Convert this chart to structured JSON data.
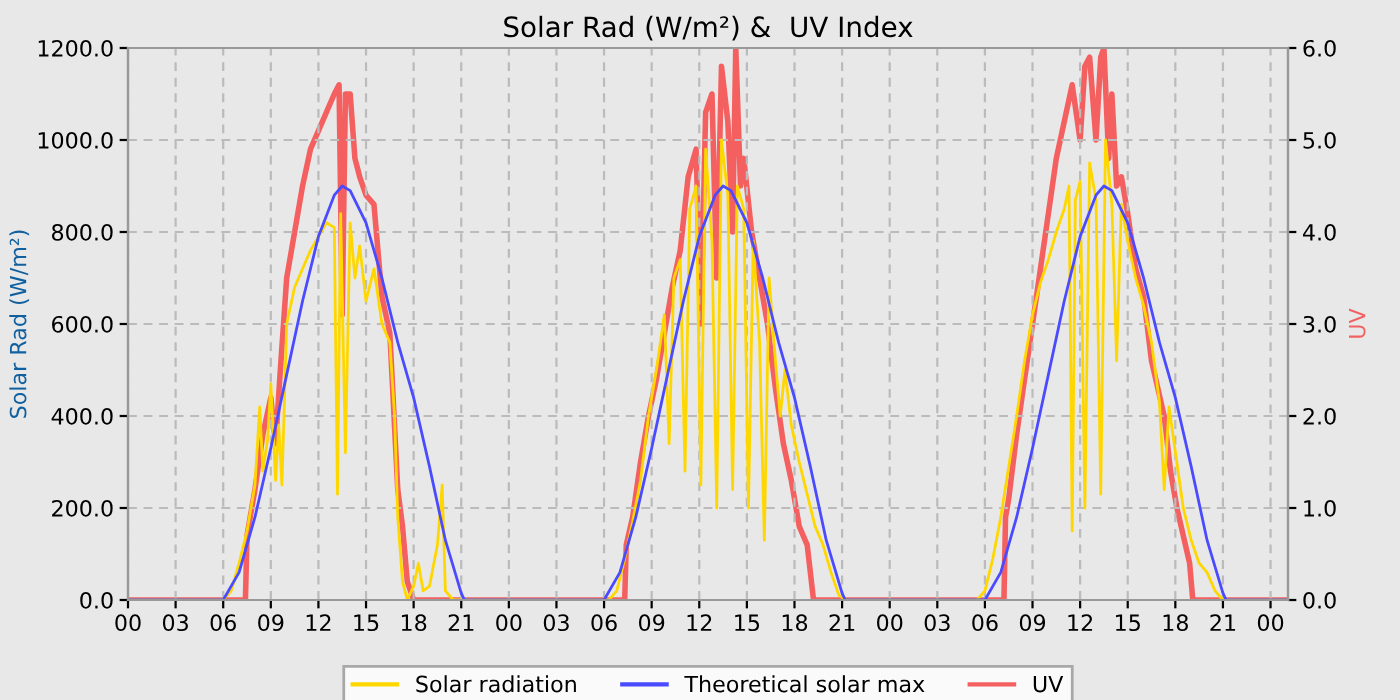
{
  "chart_data": {
    "type": "line",
    "title": "Solar Rad (W/m²) &  UV Index",
    "ylabel": "Solar Rad (W/m²)",
    "y2label": "UV",
    "xlim": [
      0,
      73.1
    ],
    "ylim": [
      0,
      1200
    ],
    "y2lim": [
      0,
      6
    ],
    "xticks": [
      {
        "value": 0,
        "label": "00"
      },
      {
        "value": 3,
        "label": "03"
      },
      {
        "value": 6,
        "label": "06"
      },
      {
        "value": 9,
        "label": "09"
      },
      {
        "value": 12,
        "label": "12"
      },
      {
        "value": 15,
        "label": "15"
      },
      {
        "value": 18,
        "label": "18"
      },
      {
        "value": 21,
        "label": "21"
      },
      {
        "value": 24,
        "label": "00"
      },
      {
        "value": 27,
        "label": "03"
      },
      {
        "value": 30,
        "label": "06"
      },
      {
        "value": 33,
        "label": "09"
      },
      {
        "value": 36,
        "label": "12"
      },
      {
        "value": 39,
        "label": "15"
      },
      {
        "value": 42,
        "label": "18"
      },
      {
        "value": 45,
        "label": "21"
      },
      {
        "value": 48,
        "label": "00"
      },
      {
        "value": 51,
        "label": "03"
      },
      {
        "value": 54,
        "label": "06"
      },
      {
        "value": 57,
        "label": "09"
      },
      {
        "value": 60,
        "label": "12"
      },
      {
        "value": 63,
        "label": "15"
      },
      {
        "value": 66,
        "label": "18"
      },
      {
        "value": 69,
        "label": "21"
      },
      {
        "value": 72,
        "label": "00"
      }
    ],
    "yticks": [
      {
        "value": 0,
        "label": "0.0"
      },
      {
        "value": 200,
        "label": "200.0"
      },
      {
        "value": 400,
        "label": "400.0"
      },
      {
        "value": 600,
        "label": "600.0"
      },
      {
        "value": 800,
        "label": "800.0"
      },
      {
        "value": 1000,
        "label": "1000.0"
      },
      {
        "value": 1200,
        "label": "1200.0"
      }
    ],
    "y2ticks": [
      {
        "value": 0,
        "label": "0.0"
      },
      {
        "value": 1,
        "label": "1.0"
      },
      {
        "value": 2,
        "label": "2.0"
      },
      {
        "value": 3,
        "label": "3.0"
      },
      {
        "value": 4,
        "label": "4.0"
      },
      {
        "value": 5,
        "label": "5.0"
      },
      {
        "value": 6,
        "label": "6.0"
      }
    ],
    "grid": true,
    "legend": "bottom",
    "series": [
      {
        "name": "Solar radiation",
        "color": "#ffd700",
        "x": [
          0,
          6,
          6.5,
          7,
          7.5,
          8,
          8.3,
          8.5,
          8.8,
          9,
          9.3,
          9.5,
          9.7,
          10,
          10.5,
          11,
          11.5,
          12,
          12.5,
          13,
          13.2,
          13.4,
          13.7,
          14,
          14.3,
          14.6,
          15,
          15.5,
          16,
          16.5,
          16.8,
          17,
          17.3,
          17.6,
          18,
          18.3,
          18.6,
          19,
          19.5,
          19.8,
          20,
          20.5,
          30.3,
          30.8,
          31.3,
          31.8,
          32.3,
          32.8,
          33.3,
          33.8,
          34.1,
          34.4,
          34.8,
          35.1,
          35.4,
          35.8,
          36.1,
          36.4,
          36.8,
          37.1,
          37.4,
          37.8,
          38.1,
          38.4,
          38.8,
          39.1,
          39.4,
          39.8,
          40.1,
          40.4,
          40.8,
          41.1,
          41.4,
          41.8,
          42.3,
          42.8,
          43.3,
          43.8,
          44.3,
          44.8,
          45.3,
          53.5,
          54,
          54.5,
          55,
          55.5,
          56,
          56.5,
          57,
          57.5,
          58,
          58.5,
          59,
          59.3,
          59.5,
          59.7,
          60,
          60.3,
          60.6,
          61,
          61.3,
          61.6,
          62,
          62.3,
          62.6,
          63,
          63.5,
          64,
          64.5,
          65,
          65.3,
          65.6,
          66.5,
          67,
          67.5,
          68,
          68.5,
          69,
          73.1
        ],
        "values": [
          0,
          0,
          20,
          80,
          150,
          250,
          420,
          280,
          350,
          470,
          260,
          380,
          250,
          600,
          680,
          720,
          760,
          790,
          820,
          810,
          230,
          840,
          320,
          820,
          700,
          770,
          650,
          720,
          600,
          560,
          400,
          180,
          40,
          0,
          30,
          80,
          20,
          30,
          120,
          250,
          20,
          0,
          0,
          20,
          90,
          170,
          260,
          400,
          500,
          620,
          340,
          700,
          740,
          280,
          850,
          900,
          250,
          980,
          780,
          200,
          1000,
          880,
          240,
          900,
          850,
          200,
          780,
          560,
          130,
          700,
          520,
          400,
          500,
          380,
          300,
          230,
          160,
          120,
          60,
          10,
          0,
          0,
          20,
          90,
          180,
          290,
          400,
          520,
          620,
          690,
          740,
          800,
          850,
          900,
          150,
          870,
          910,
          200,
          950,
          870,
          230,
          1000,
          860,
          520,
          860,
          780,
          700,
          640,
          560,
          430,
          240,
          420,
          200,
          130,
          80,
          60,
          20,
          0,
          0
        ]
      },
      {
        "name": "Theoretical solar max",
        "color": "#4a4aff",
        "x": [
          0,
          6,
          7,
          8,
          9,
          10,
          11,
          12,
          13,
          13.5,
          14,
          15,
          16,
          17,
          18,
          19,
          20,
          21,
          21.2,
          30,
          31,
          32,
          33,
          34,
          35,
          36,
          37,
          37.5,
          38,
          39,
          40,
          41,
          42,
          43,
          44,
          45,
          45.2,
          54,
          55,
          56,
          57,
          58,
          59,
          60,
          61,
          61.5,
          62,
          63,
          64,
          65,
          66,
          67,
          68,
          69,
          69.2,
          73.1
        ],
        "values": [
          0,
          0,
          60,
          180,
          330,
          490,
          650,
          790,
          880,
          900,
          890,
          820,
          700,
          560,
          440,
          290,
          130,
          15,
          0,
          0,
          60,
          180,
          330,
          490,
          650,
          790,
          880,
          900,
          890,
          820,
          700,
          560,
          440,
          290,
          130,
          15,
          0,
          0,
          60,
          180,
          330,
          490,
          650,
          790,
          880,
          900,
          890,
          820,
          700,
          560,
          440,
          290,
          130,
          15,
          0,
          0
        ]
      },
      {
        "name": "UV",
        "color": "#f46060",
        "axis": "y2",
        "x": [
          0,
          7.4,
          7.5,
          8,
          8.5,
          9,
          9.3,
          9.6,
          10,
          10.5,
          11,
          11.5,
          12,
          12.5,
          13,
          13.3,
          13.5,
          13.7,
          14,
          14.3,
          14.6,
          15,
          15.5,
          16,
          16.5,
          17,
          17.3,
          17.6,
          18,
          31.3,
          31.4,
          31.8,
          32.3,
          32.8,
          33.3,
          33.8,
          34.3,
          34.8,
          35.3,
          35.8,
          36.1,
          36.4,
          36.8,
          37.1,
          37.4,
          37.8,
          38.1,
          38.3,
          38.6,
          38.8,
          39.3,
          39.8,
          40.3,
          40.8,
          41.3,
          41.8,
          42.3,
          42.8,
          43.2,
          55.2,
          55.3,
          55.5,
          56,
          56.5,
          57,
          57.5,
          58,
          58.5,
          59,
          59.5,
          60,
          60.3,
          60.6,
          61,
          61.3,
          61.5,
          61.8,
          62,
          62.3,
          62.6,
          63,
          63.5,
          64,
          64.5,
          65.3,
          65.7,
          66.1,
          66.5,
          66.9,
          67.1,
          73.1
        ],
        "values": [
          0,
          0,
          0.7,
          1.2,
          1.8,
          2.2,
          1.7,
          2.5,
          3.5,
          4.0,
          4.5,
          4.9,
          5.1,
          5.3,
          5.5,
          5.6,
          3.1,
          5.5,
          5.5,
          4.8,
          4.6,
          4.4,
          4.3,
          3.3,
          2.9,
          1.2,
          0.8,
          0.2,
          0,
          0,
          0.6,
          0.9,
          1.5,
          2.0,
          2.4,
          2.9,
          3.4,
          3.8,
          4.6,
          4.9,
          3.0,
          5.3,
          5.5,
          3.5,
          5.8,
          5.2,
          4.0,
          6.0,
          4.5,
          4.8,
          4.0,
          3.5,
          3.0,
          2.3,
          1.7,
          1.3,
          0.8,
          0.6,
          0,
          0,
          0.9,
          1.1,
          1.8,
          2.4,
          3.0,
          3.6,
          4.2,
          4.8,
          5.2,
          5.6,
          5.0,
          5.8,
          5.9,
          5.0,
          5.9,
          6.0,
          4.8,
          5.5,
          4.5,
          4.6,
          4.2,
          3.6,
          3.3,
          2.6,
          2.0,
          1.4,
          1.0,
          0.7,
          0.4,
          0,
          0
        ]
      }
    ]
  }
}
